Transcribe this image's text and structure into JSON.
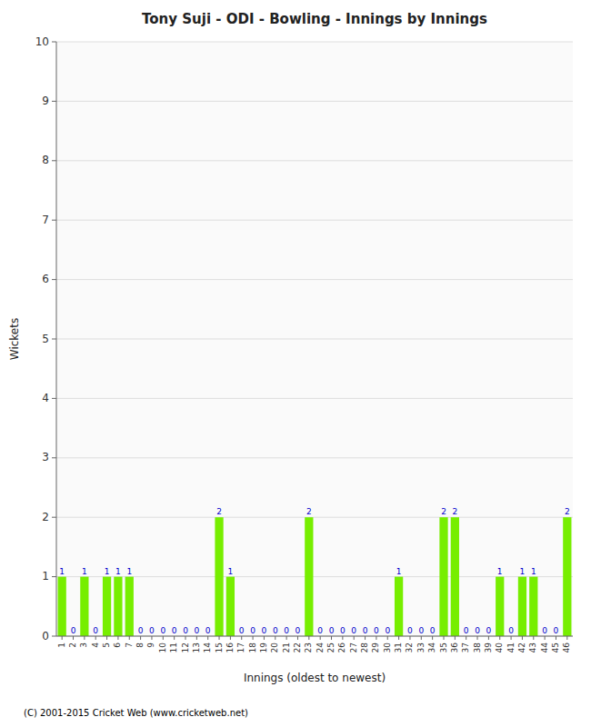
{
  "chart_data": {
    "type": "bar",
    "title": "Tony Suji - ODI - Bowling - Innings by Innings",
    "xlabel": "Innings (oldest to newest)",
    "ylabel": "Wickets",
    "footer": "(C) 2001-2015 Cricket Web (www.cricketweb.net)",
    "categories": [
      "1",
      "2",
      "3",
      "4",
      "5",
      "6",
      "7",
      "8",
      "9",
      "10",
      "11",
      "12",
      "13",
      "14",
      "15",
      "16",
      "17",
      "18",
      "19",
      "20",
      "21",
      "22",
      "23",
      "24",
      "25",
      "26",
      "27",
      "28",
      "29",
      "30",
      "31",
      "32",
      "33",
      "34",
      "35",
      "36",
      "37",
      "38",
      "39",
      "40",
      "41",
      "42",
      "43",
      "44",
      "45",
      "46"
    ],
    "values": [
      1,
      0,
      1,
      0,
      1,
      1,
      1,
      0,
      0,
      0,
      0,
      0,
      0,
      0,
      2,
      1,
      0,
      0,
      0,
      0,
      0,
      0,
      2,
      0,
      0,
      0,
      0,
      0,
      0,
      0,
      1,
      0,
      0,
      0,
      2,
      2,
      0,
      0,
      0,
      1,
      0,
      1,
      1,
      0,
      0,
      2
    ],
    "color": "#77ee00",
    "ylim": [
      0,
      10
    ],
    "yticks": [
      0,
      1,
      2,
      3,
      4,
      5,
      6,
      7,
      8,
      9,
      10
    ],
    "grid": true,
    "data_labels": true
  }
}
